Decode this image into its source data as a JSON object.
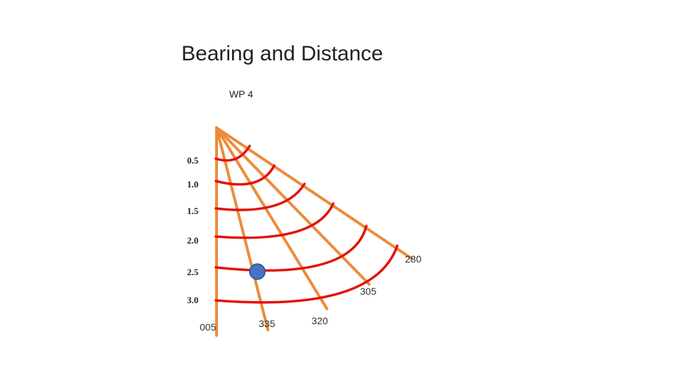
{
  "header": {
    "title": "Bearing and Distance"
  },
  "waypoint": "WP 4",
  "distances": [
    "0.5",
    "1.0",
    "1.5",
    "2.0",
    "2.5",
    "3.0"
  ],
  "bearings": [
    "005",
    "335",
    "320",
    "305",
    "280"
  ]
}
